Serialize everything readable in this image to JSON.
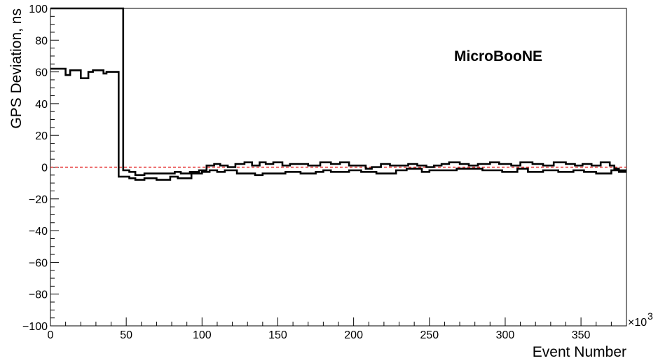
{
  "chart_data": {
    "type": "line",
    "title": "",
    "annotation": "MicroBooNE",
    "xlabel": "Event Number",
    "ylabel": "GPS Deviation, ns",
    "x_scale_label": "×10",
    "x_scale_exponent": "3",
    "xlim": [
      0,
      380
    ],
    "ylim": [
      -100,
      100
    ],
    "x_major_ticks": [
      0,
      50,
      100,
      150,
      200,
      250,
      300,
      350
    ],
    "y_major_ticks": [
      -100,
      -80,
      -60,
      -40,
      -20,
      0,
      20,
      40,
      60,
      80,
      100
    ],
    "x_tick_labels": [
      "0",
      "50",
      "100",
      "150",
      "200",
      "250",
      "300",
      "350"
    ],
    "y_tick_labels": [
      "−100",
      "−80",
      "−60",
      "−40",
      "−20",
      "0",
      "20",
      "40",
      "60",
      "80",
      "100"
    ],
    "reference_line": {
      "y": 0,
      "color": "#e00000",
      "style": "dashed"
    },
    "series": [
      {
        "style": "step",
        "color": "#000000",
        "points": [
          [
            0,
            62
          ],
          [
            10,
            58
          ],
          [
            13,
            61
          ],
          [
            17,
            61
          ],
          [
            20,
            56
          ],
          [
            25,
            60
          ],
          [
            28,
            61
          ],
          [
            35,
            59
          ],
          [
            37,
            60
          ],
          [
            44,
            60
          ],
          [
            45,
            -6
          ],
          [
            49,
            -6
          ],
          [
            52,
            -7
          ],
          [
            56,
            -8
          ],
          [
            62,
            -7
          ],
          [
            65,
            -7
          ],
          [
            70,
            -8
          ],
          [
            79,
            -6
          ],
          [
            82,
            -6
          ],
          [
            84,
            -7
          ],
          [
            93,
            -4
          ],
          [
            100,
            -3
          ],
          [
            105,
            -2
          ],
          [
            110,
            -3
          ],
          [
            115,
            -2
          ],
          [
            123,
            -4
          ],
          [
            127,
            -4
          ],
          [
            135,
            -5
          ],
          [
            140,
            -4
          ],
          [
            155,
            -3
          ],
          [
            165,
            -4
          ],
          [
            175,
            -3
          ],
          [
            180,
            -2
          ],
          [
            185,
            -3
          ],
          [
            191,
            -3
          ],
          [
            197,
            -2
          ],
          [
            205,
            -3
          ],
          [
            215,
            -4
          ],
          [
            228,
            -2
          ],
          [
            235,
            -1
          ],
          [
            245,
            -3
          ],
          [
            250,
            -2
          ],
          [
            260,
            -2
          ],
          [
            268,
            -1
          ],
          [
            275,
            -1
          ],
          [
            285,
            -2
          ],
          [
            290,
            -2
          ],
          [
            298,
            -3
          ],
          [
            308,
            -1
          ],
          [
            315,
            -3
          ],
          [
            325,
            -2
          ],
          [
            335,
            -3
          ],
          [
            345,
            -2
          ],
          [
            352,
            -3
          ],
          [
            360,
            -4
          ],
          [
            370,
            -2
          ],
          [
            375,
            -3
          ],
          [
            380,
            -3
          ]
        ]
      },
      {
        "style": "step",
        "color": "#000000",
        "points": [
          [
            0,
            100
          ],
          [
            45,
            100
          ],
          [
            48,
            -2
          ],
          [
            52,
            -3
          ],
          [
            56,
            -5
          ],
          [
            62,
            -4
          ],
          [
            67,
            -4
          ],
          [
            72,
            -4
          ],
          [
            78,
            -4
          ],
          [
            82,
            -3
          ],
          [
            86,
            -4
          ],
          [
            92,
            -3
          ],
          [
            98,
            -2
          ],
          [
            103,
            1
          ],
          [
            108,
            2
          ],
          [
            112,
            1
          ],
          [
            117,
            0
          ],
          [
            122,
            2
          ],
          [
            128,
            3
          ],
          [
            133,
            1
          ],
          [
            138,
            3
          ],
          [
            142,
            2
          ],
          [
            147,
            3
          ],
          [
            153,
            1
          ],
          [
            158,
            2
          ],
          [
            165,
            2
          ],
          [
            170,
            1
          ],
          [
            178,
            3
          ],
          [
            185,
            2
          ],
          [
            191,
            3
          ],
          [
            197,
            1
          ],
          [
            202,
            1
          ],
          [
            208,
            -1
          ],
          [
            212,
            0
          ],
          [
            218,
            2
          ],
          [
            224,
            1
          ],
          [
            230,
            1
          ],
          [
            236,
            2
          ],
          [
            242,
            1
          ],
          [
            248,
            0
          ],
          [
            253,
            1
          ],
          [
            258,
            2
          ],
          [
            263,
            3
          ],
          [
            270,
            2
          ],
          [
            276,
            1
          ],
          [
            282,
            2
          ],
          [
            290,
            3
          ],
          [
            296,
            2
          ],
          [
            304,
            1
          ],
          [
            310,
            3
          ],
          [
            318,
            2
          ],
          [
            325,
            1
          ],
          [
            332,
            3
          ],
          [
            340,
            2
          ],
          [
            346,
            1
          ],
          [
            351,
            2
          ],
          [
            357,
            1
          ],
          [
            363,
            3
          ],
          [
            369,
            1
          ],
          [
            372,
            -1
          ],
          [
            375,
            -2
          ],
          [
            378,
            -2
          ],
          [
            380,
            -2
          ]
        ]
      }
    ]
  }
}
